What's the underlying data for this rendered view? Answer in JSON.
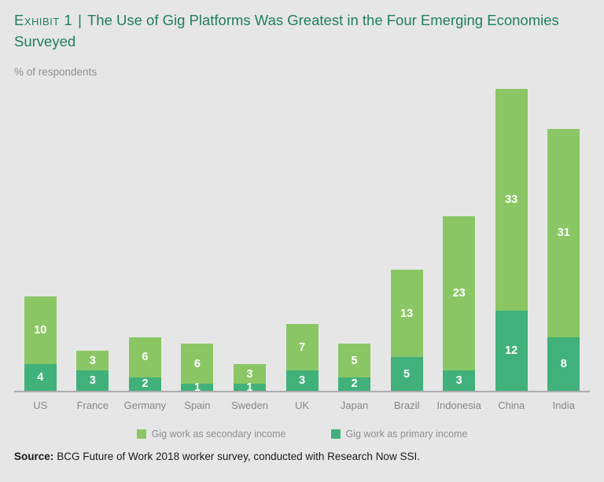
{
  "header": {
    "exhibit_label": "Exhibit 1",
    "separator": "|",
    "title": "The Use of Gig Platforms Was Greatest in the Four Emerging Economies Surveyed",
    "subtitle": "% of respondents"
  },
  "chart_data": {
    "type": "bar",
    "stacked": true,
    "categories": [
      "US",
      "France",
      "Germany",
      "Spain",
      "Sweden",
      "UK",
      "Japan",
      "Brazil",
      "Indonesia",
      "China",
      "India"
    ],
    "series": [
      {
        "name": "Gig work as primary income",
        "color": "#41b17b",
        "values": [
          4,
          3,
          2,
          1,
          1,
          3,
          2,
          5,
          3,
          12,
          8
        ]
      },
      {
        "name": "Gig work as secondary income",
        "color": "#8ac764",
        "values": [
          10,
          3,
          6,
          6,
          3,
          7,
          5,
          13,
          23,
          33,
          31
        ]
      }
    ],
    "totals": [
      14,
      6,
      8,
      7,
      4,
      10,
      7,
      18,
      26,
      45,
      39
    ],
    "value_labels_shown": true,
    "title": "The Use of Gig Platforms Was Greatest in the Four Emerging Economies Surveyed",
    "xlabel": "",
    "ylabel": "% of respondents",
    "ylim": [
      0,
      46.5
    ],
    "grid": false,
    "legend_position": "bottom"
  },
  "legend": {
    "items": [
      {
        "label": "Gig work as secondary income",
        "color": "#8ac764"
      },
      {
        "label": "Gig work as primary income",
        "color": "#41b17b"
      }
    ]
  },
  "footer": {
    "source_label": "Source:",
    "source_text": "BCG Future of Work 2018 worker survey, conducted with Research Now SSI."
  },
  "colors": {
    "background": "#e7e6e6",
    "title_teal": "#1e7e61",
    "secondary_green": "#8ac764",
    "primary_green": "#41b17b",
    "axis_line": "#aeadad",
    "axis_label": "#868686",
    "legend_text": "#8e8e8e",
    "subtitle_gray": "#8f8f8f",
    "value_label": "#ffffff",
    "source_text_color": "#1a1a1a"
  }
}
